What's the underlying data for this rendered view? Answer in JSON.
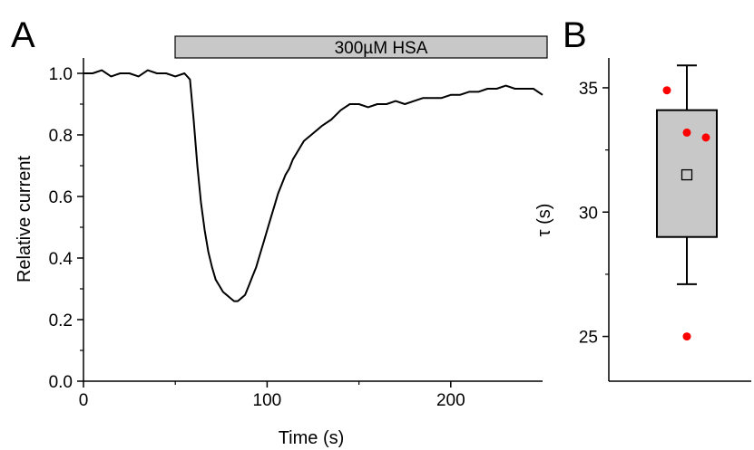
{
  "chart_data": [
    {
      "type": "line",
      "panel_label": "A",
      "xlabel": "Time (s)",
      "ylabel": "Relative current",
      "xlim": [
        0,
        250
      ],
      "ylim": [
        0,
        1.05
      ],
      "x_ticks": [
        0,
        100,
        200
      ],
      "x_tick_labels": [
        "0",
        "100",
        "200"
      ],
      "y_ticks": [
        0,
        0.2,
        0.4,
        0.6,
        0.8,
        1.0
      ],
      "y_tick_labels": [
        "0.0",
        "0.2",
        "0.4",
        "0.6",
        "0.8",
        "1.0"
      ],
      "grid": false,
      "annotation": {
        "label": "300µM HSA",
        "x_start": 50,
        "x_end": 253
      },
      "series": [
        {
          "color": "#000000",
          "x": [
            0,
            5,
            10,
            15,
            20,
            25,
            30,
            35,
            40,
            45,
            50,
            55,
            58,
            60,
            62,
            64,
            66,
            68,
            70,
            72,
            74,
            76,
            78,
            80,
            82,
            84,
            86,
            88,
            90,
            92,
            94,
            96,
            98,
            100,
            102,
            104,
            106,
            108,
            110,
            112,
            114,
            116,
            118,
            120,
            122,
            124,
            126,
            128,
            130,
            135,
            140,
            145,
            150,
            155,
            160,
            165,
            170,
            175,
            180,
            185,
            190,
            195,
            200,
            205,
            210,
            215,
            220,
            225,
            230,
            235,
            240,
            245,
            250
          ],
          "y": [
            1.0,
            1.0,
            1.01,
            0.99,
            1.0,
            1.0,
            0.99,
            1.01,
            1.0,
            1.0,
            0.99,
            1.0,
            0.98,
            0.85,
            0.7,
            0.58,
            0.49,
            0.42,
            0.37,
            0.33,
            0.31,
            0.29,
            0.28,
            0.27,
            0.26,
            0.26,
            0.27,
            0.28,
            0.31,
            0.34,
            0.37,
            0.41,
            0.45,
            0.49,
            0.53,
            0.57,
            0.61,
            0.64,
            0.67,
            0.69,
            0.72,
            0.74,
            0.76,
            0.78,
            0.79,
            0.8,
            0.81,
            0.82,
            0.83,
            0.85,
            0.88,
            0.9,
            0.9,
            0.89,
            0.9,
            0.9,
            0.91,
            0.9,
            0.91,
            0.92,
            0.92,
            0.92,
            0.93,
            0.93,
            0.94,
            0.94,
            0.95,
            0.95,
            0.96,
            0.95,
            0.95,
            0.95,
            0.93
          ]
        }
      ]
    },
    {
      "type": "box",
      "panel_label": "B",
      "ylabel": "τ (s)",
      "ylim": [
        23.2,
        36.2
      ],
      "y_ticks": [
        25,
        30,
        35
      ],
      "y_tick_labels": [
        "25",
        "30",
        "35"
      ],
      "box": {
        "whisker_low": 27.1,
        "q1": 29.0,
        "q3": 34.1,
        "whisker_high": 35.9,
        "mean": 31.5
      },
      "points": [
        34.9,
        33.2,
        33.0,
        25.0
      ],
      "colors": {
        "box_fill": "#c8c8c8",
        "points": "#ff0000"
      }
    }
  ]
}
